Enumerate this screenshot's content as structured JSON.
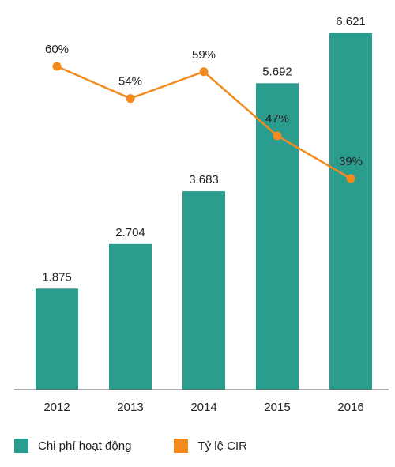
{
  "chart_data": {
    "type": "bar",
    "categories": [
      "2012",
      "2013",
      "2014",
      "2015",
      "2016"
    ],
    "series": [
      {
        "name": "Chi phí hoạt động",
        "type": "bar",
        "values": [
          1.875,
          2.704,
          3.683,
          5.692,
          6.621
        ],
        "labels": [
          "1.875",
          "2.704",
          "3.683",
          "5.692",
          "6.621"
        ],
        "color": "#2a9d8f"
      },
      {
        "name": "Tỷ lệ CIR",
        "type": "line",
        "values": [
          60,
          54,
          59,
          47,
          39
        ],
        "labels": [
          "60%",
          "54%",
          "59%",
          "47%",
          "39%"
        ],
        "color": "#f28a1e"
      }
    ],
    "grid": false,
    "legend_position": "bottom-left"
  }
}
